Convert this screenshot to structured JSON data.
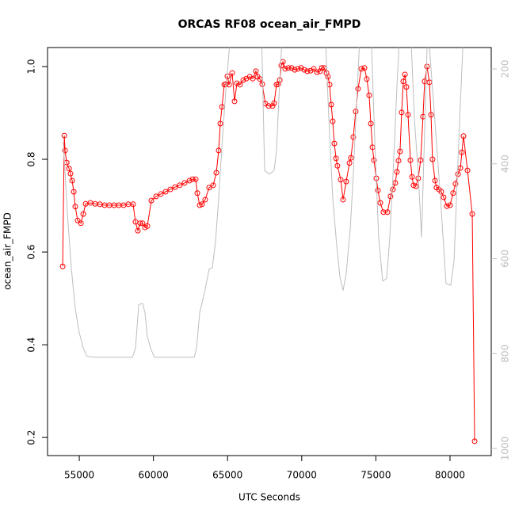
{
  "chart_data": {
    "type": "line",
    "title": "ORCAS RF08 ocean_air_FMPD",
    "xlabel": "UTC Seconds",
    "ylabel": "ocean_air_FMPD",
    "xlim": [
      52860,
      82780
    ],
    "ylim": [
      0.161,
      1.041
    ],
    "y2lim": [
      1015,
      155
    ],
    "xticks": [
      55000,
      60000,
      65000,
      70000,
      75000,
      80000
    ],
    "yticks": [
      0.2,
      0.4,
      0.6,
      0.8,
      {
        "value": 1,
        "label": "1.0"
      }
    ],
    "y2ticks": [
      200,
      400,
      600,
      800,
      1000
    ],
    "series": [
      {
        "color": "#ff0000",
        "markers": true,
        "x": [
          53880,
          53990,
          54040,
          54150,
          54310,
          54410,
          54520,
          54630,
          54730,
          54890,
          55110,
          55270,
          55430,
          55750,
          56070,
          56390,
          56710,
          57030,
          57350,
          57670,
          57990,
          58310,
          58630,
          58790,
          58950,
          59110,
          59270,
          59430,
          59590,
          59860,
          60180,
          60500,
          60820,
          61140,
          61460,
          61780,
          62100,
          62430,
          62640,
          62850,
          62960,
          63120,
          63280,
          63490,
          63760,
          64030,
          64240,
          64400,
          64510,
          64620,
          64780,
          64880,
          64990,
          65100,
          65310,
          65470,
          65630,
          65840,
          66060,
          66270,
          66490,
          66700,
          66910,
          67020,
          67180,
          67340,
          67550,
          67770,
          68030,
          68140,
          68300,
          68410,
          68520,
          68620,
          68730,
          68890,
          69100,
          69320,
          69530,
          69740,
          69960,
          70170,
          70380,
          70600,
          70810,
          71030,
          71240,
          71350,
          71510,
          71670,
          71770,
          71880,
          71990,
          72090,
          72200,
          72310,
          72410,
          72630,
          72790,
          73000,
          73220,
          73320,
          73480,
          73640,
          73800,
          74020,
          74230,
          74390,
          74550,
          74660,
          74770,
          74870,
          75030,
          75140,
          75300,
          75510,
          75780,
          75990,
          76150,
          76310,
          76420,
          76530,
          76630,
          76740,
          76850,
          76960,
          77060,
          77170,
          77330,
          77440,
          77540,
          77700,
          77860,
          78020,
          78180,
          78290,
          78450,
          78610,
          78720,
          78820,
          78990,
          79090,
          79250,
          79410,
          79570,
          79790,
          80000,
          80210,
          80370,
          80540,
          80700,
          80800,
          80910,
          81180,
          81500,
          81660
        ],
        "values": [
          0.569,
          0.851,
          0.819,
          0.793,
          0.78,
          0.769,
          0.754,
          0.73,
          0.698,
          0.668,
          0.662,
          0.682,
          0.704,
          0.706,
          0.704,
          0.703,
          0.701,
          0.701,
          0.701,
          0.701,
          0.701,
          0.703,
          0.703,
          0.665,
          0.646,
          0.662,
          0.662,
          0.653,
          0.656,
          0.711,
          0.72,
          0.725,
          0.73,
          0.735,
          0.74,
          0.744,
          0.749,
          0.754,
          0.757,
          0.757,
          0.727,
          0.701,
          0.703,
          0.713,
          0.739,
          0.744,
          0.771,
          0.819,
          0.877,
          0.913,
          0.961,
          0.962,
          0.979,
          0.961,
          0.986,
          0.925,
          0.964,
          0.961,
          0.971,
          0.974,
          0.978,
          0.974,
          0.99,
          0.978,
          0.973,
          0.962,
          0.92,
          0.915,
          0.915,
          0.921,
          0.961,
          0.962,
          0.971,
          1.002,
          1.01,
          0.995,
          0.997,
          0.997,
          0.993,
          0.995,
          0.997,
          0.993,
          0.99,
          0.991,
          0.995,
          0.988,
          0.99,
          0.997,
          0.997,
          0.986,
          0.978,
          0.961,
          0.918,
          0.882,
          0.834,
          0.802,
          0.786,
          0.756,
          0.713,
          0.752,
          0.792,
          0.803,
          0.848,
          0.903,
          0.952,
          0.995,
          0.997,
          0.973,
          0.938,
          0.877,
          0.826,
          0.798,
          0.759,
          0.733,
          0.706,
          0.686,
          0.686,
          0.72,
          0.735,
          0.749,
          0.773,
          0.797,
          0.817,
          0.901,
          0.968,
          0.983,
          0.956,
          0.896,
          0.798,
          0.762,
          0.744,
          0.742,
          0.759,
          0.798,
          0.892,
          0.968,
          1.0,
          0.966,
          0.896,
          0.8,
          0.754,
          0.739,
          0.735,
          0.73,
          0.718,
          0.699,
          0.701,
          0.727,
          0.747,
          0.768,
          0.781,
          0.815,
          0.85,
          0.776,
          0.682,
          0.192
        ]
      },
      {
        "color": "#bebebe",
        "axis": "y2",
        "markers": false,
        "x": [
          53930,
          54200,
          54470,
          54730,
          55000,
          55270,
          55530,
          56070,
          58580,
          58790,
          59010,
          59270,
          59430,
          59590,
          59810,
          60070,
          62750,
          62910,
          63120,
          63440,
          63760,
          63970,
          64190,
          64400,
          64670,
          64940,
          65260,
          67290,
          67500,
          67820,
          68140,
          68300,
          68520,
          68730,
          71560,
          71830,
          72090,
          72360,
          72580,
          72790,
          73000,
          73270,
          73480,
          73700,
          73960,
          74660,
          74930,
          75190,
          75460,
          75730,
          75940,
          76210,
          76420,
          76640,
          77330,
          77600,
          77860,
          78080,
          78500,
          79360,
          79730,
          80050,
          80270,
          80480,
          80700,
          80910
        ],
        "values": [
          355,
          505,
          622,
          706,
          756,
          789,
          806,
          808,
          808,
          789,
          697,
          694,
          714,
          764,
          789,
          808,
          808,
          789,
          714,
          672,
          622,
          619,
          564,
          472,
          339,
          222,
          105,
          122,
          414,
          422,
          414,
          372,
          222,
          105,
          105,
          305,
          472,
          572,
          639,
          667,
          631,
          539,
          422,
          272,
          105,
          105,
          355,
          555,
          647,
          642,
          555,
          389,
          238,
          105,
          105,
          305,
          422,
          555,
          105,
          472,
          652,
          656,
          606,
          439,
          272,
          122
        ]
      }
    ]
  }
}
